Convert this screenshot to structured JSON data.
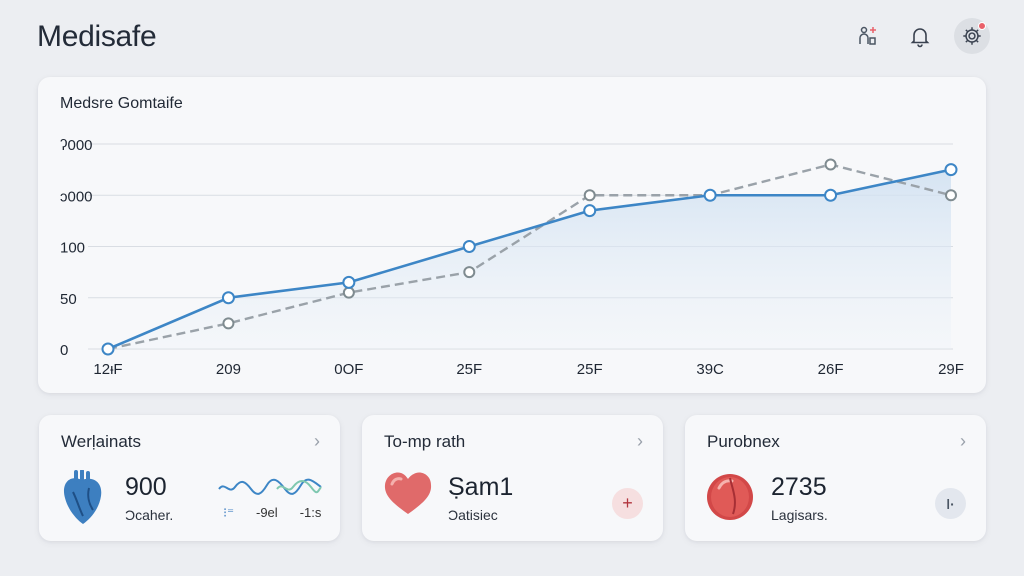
{
  "app": {
    "title": "Medisafe"
  },
  "header": {
    "icons": [
      {
        "name": "medication-icon",
        "label": ""
      },
      {
        "name": "bell-icon",
        "label": ""
      },
      {
        "name": "gear-icon",
        "label": ""
      }
    ]
  },
  "chart_card": {
    "title": "Medsre Gomtaife"
  },
  "chart_data": {
    "type": "line",
    "title": "Medsre Gomtaife",
    "y_tick_labels": [
      "0",
      "50",
      "100",
      "ↄ000",
      "ʔ000"
    ],
    "x_tick_labels": [
      "12ᵻF",
      "209",
      "0OF",
      "25F",
      "25F",
      "39C",
      "26F",
      "29F"
    ],
    "series": [
      {
        "values": [
          0,
          50,
          65,
          100,
          135,
          150,
          150,
          175
        ],
        "color": "#3d86c6"
      },
      {
        "values": [
          0,
          25,
          55,
          75,
          150,
          150,
          180,
          150
        ],
        "color": "#9aa2a9",
        "dashed": true
      }
    ],
    "ylim": [
      0,
      200
    ],
    "grid": true
  },
  "cards": [
    {
      "title": "Werḷainats",
      "value": "900",
      "subtitle": "Ɔcaher.",
      "spark_labels": [
        "⁝⁼",
        "-9el",
        "-1:s"
      ],
      "accent": "#3d86c6"
    },
    {
      "title": "To-mp rath",
      "value": "Ṣam1",
      "subtitle": "Ɔatisiec",
      "action": "+",
      "accent": "#d85a5a"
    },
    {
      "title": "Purobnex",
      "value": "2735",
      "subtitle": "Lagisars.",
      "action": "ǀ·",
      "accent": "#d24848"
    }
  ]
}
